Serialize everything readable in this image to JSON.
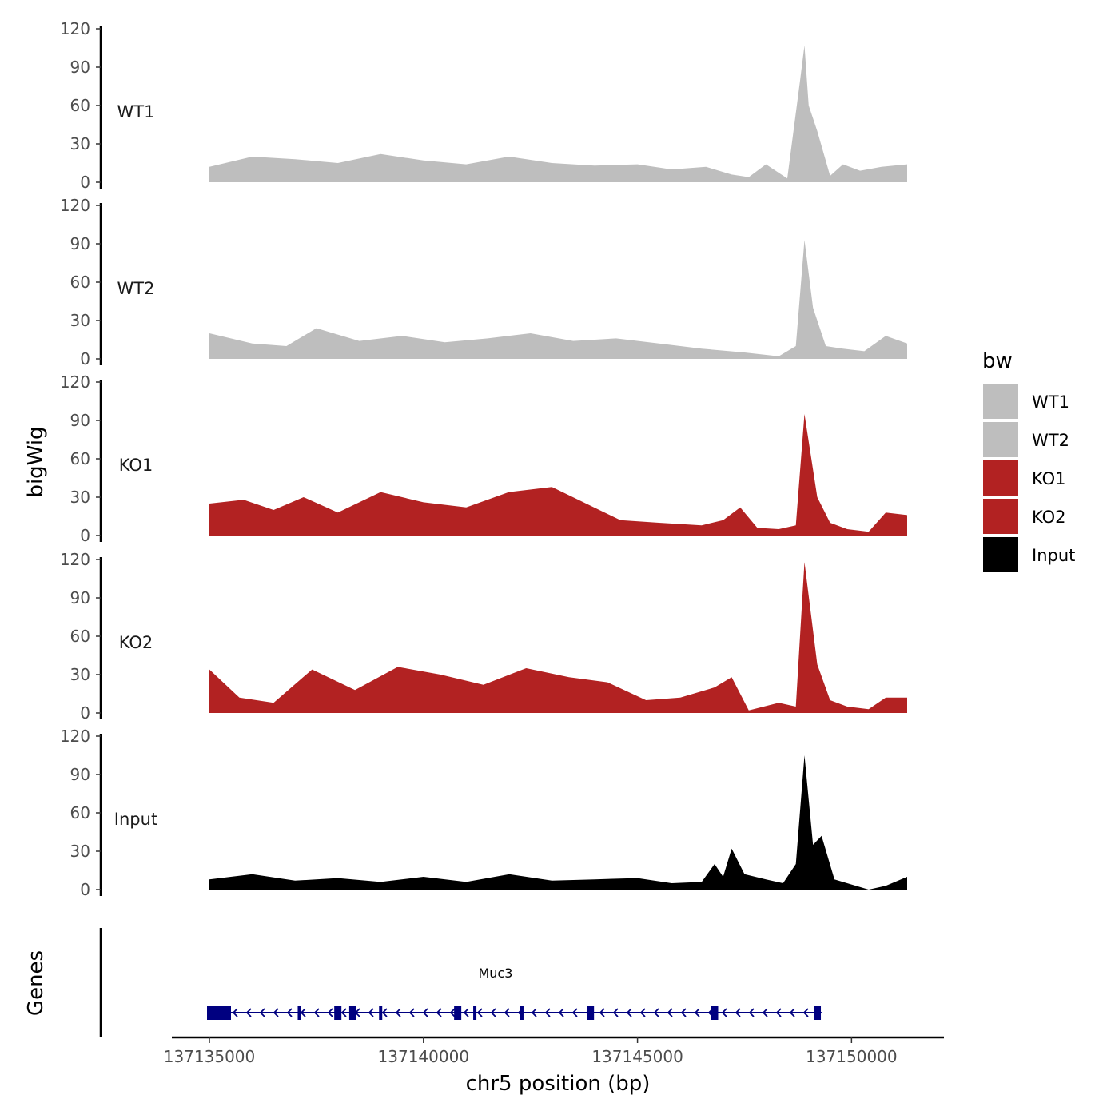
{
  "chart_data": {
    "type": "area",
    "title": "",
    "ylabel": "bigWig",
    "genes_label": "Genes",
    "xlabel": "chr5 position (bp)",
    "xlim": [
      137135000,
      137151300
    ],
    "ylim": [
      0,
      120
    ],
    "y_ticks": [
      "0",
      "30",
      "60",
      "90",
      "120"
    ],
    "x_ticks": [
      {
        "value": 137135000,
        "label": "137135000"
      },
      {
        "value": 137140000,
        "label": "137140000"
      },
      {
        "value": 137145000,
        "label": "137145000"
      },
      {
        "value": 137150000,
        "label": "137150000"
      }
    ],
    "legend": {
      "title": "bw",
      "entries": [
        {
          "label": "WT1",
          "color": "#BEBEBE"
        },
        {
          "label": "WT2",
          "color": "#BEBEBE"
        },
        {
          "label": "KO1",
          "color": "#B22222"
        },
        {
          "label": "KO2",
          "color": "#B22222"
        },
        {
          "label": "Input",
          "color": "#000000"
        }
      ]
    },
    "series": [
      {
        "name": "WT1",
        "color": "#BEBEBE",
        "x": [
          137135000,
          137136000,
          137137000,
          137138000,
          137139000,
          137140000,
          137141000,
          137142000,
          137143000,
          137144000,
          137145000,
          137145800,
          137146600,
          137147200,
          137147600,
          137148000,
          137148500,
          137148800,
          137148900,
          137149000,
          137149200,
          137149500,
          137149800,
          137150200,
          137150700,
          137151300
        ],
        "values": [
          12,
          20,
          18,
          15,
          22,
          17,
          14,
          20,
          15,
          13,
          14,
          10,
          12,
          6,
          4,
          14,
          3,
          80,
          107,
          60,
          40,
          5,
          14,
          9,
          12,
          14
        ]
      },
      {
        "name": "WT2",
        "color": "#BEBEBE",
        "x": [
          137135000,
          137136000,
          137136800,
          137137500,
          137138500,
          137139500,
          137140500,
          137141500,
          137142500,
          137143500,
          137144500,
          137145500,
          137146500,
          137147500,
          137148300,
          137148700,
          137148900,
          137149100,
          137149400,
          137149800,
          137150300,
          137150800,
          137151300
        ],
        "values": [
          20,
          12,
          10,
          24,
          14,
          18,
          13,
          16,
          20,
          14,
          16,
          12,
          8,
          5,
          2,
          10,
          93,
          40,
          10,
          8,
          6,
          18,
          12
        ]
      },
      {
        "name": "KO1",
        "color": "#B22222",
        "x": [
          137135000,
          137135800,
          137136500,
          137137200,
          137138000,
          137139000,
          137140000,
          137141000,
          137142000,
          137143000,
          137143800,
          137144600,
          137145500,
          137146500,
          137147000,
          137147400,
          137147800,
          137148300,
          137148700,
          137148900,
          137149200,
          137149500,
          137149900,
          137150400,
          137150800,
          137151300
        ],
        "values": [
          25,
          28,
          20,
          30,
          18,
          34,
          26,
          22,
          34,
          38,
          25,
          12,
          10,
          8,
          12,
          22,
          6,
          5,
          8,
          95,
          30,
          10,
          5,
          3,
          18,
          16
        ]
      },
      {
        "name": "KO2",
        "color": "#B22222",
        "x": [
          137135000,
          137135700,
          137136500,
          137137400,
          137138400,
          137139400,
          137140400,
          137141400,
          137142400,
          137143400,
          137144300,
          137145200,
          137146000,
          137146800,
          137147200,
          137147600,
          137148300,
          137148700,
          137148900,
          137149200,
          137149500,
          137149900,
          137150400,
          137150800,
          137151300
        ],
        "values": [
          34,
          12,
          8,
          34,
          18,
          36,
          30,
          22,
          35,
          28,
          24,
          10,
          12,
          20,
          28,
          2,
          8,
          5,
          118,
          38,
          10,
          5,
          3,
          12,
          12
        ]
      },
      {
        "name": "Input",
        "color": "#000000",
        "x": [
          137135000,
          137136000,
          137137000,
          137138000,
          137139000,
          137140000,
          137141000,
          137142000,
          137143000,
          137144000,
          137145000,
          137145800,
          137146500,
          137146800,
          137147000,
          137147200,
          137147500,
          137148000,
          137148400,
          137148700,
          137148900,
          137149100,
          137149300,
          137149600,
          137150000,
          137150400,
          137150800,
          137151300
        ],
        "values": [
          8,
          12,
          7,
          9,
          6,
          10,
          6,
          12,
          7,
          8,
          9,
          5,
          6,
          20,
          10,
          32,
          12,
          8,
          5,
          20,
          105,
          35,
          42,
          8,
          4,
          0,
          3,
          10
        ]
      }
    ],
    "gene": {
      "name": "Muc3",
      "strand": "-",
      "start": 137135000,
      "end": 137149300,
      "color": "#000080",
      "exons": [
        137135300,
        137137100,
        137138000,
        137138350,
        137139000,
        137140800,
        137141200,
        137142300,
        137143900,
        137146800,
        137149200
      ]
    }
  }
}
